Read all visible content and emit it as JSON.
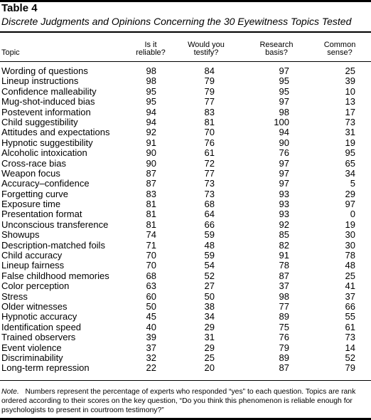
{
  "table": {
    "title": "Table 4",
    "subtitle": "Discrete Judgments and Opinions Concerning the 30 Eyewitness Topics Tested",
    "headers": {
      "topic": "Topic",
      "reliable_line1": "Is it",
      "reliable_line2": "reliable?",
      "testify_line1": "Would you",
      "testify_line2": "testify?",
      "research_line1": "Research",
      "research_line2": "basis?",
      "common_line1": "Common",
      "common_line2": "sense?"
    },
    "rows": [
      {
        "topic": "Wording of questions",
        "reliable": "98",
        "testify": "84",
        "research": "97",
        "common": "25"
      },
      {
        "topic": "Lineup instructions",
        "reliable": "98",
        "testify": "79",
        "research": "95",
        "common": "39"
      },
      {
        "topic": "Confidence malleability",
        "reliable": "95",
        "testify": "79",
        "research": "95",
        "common": "10"
      },
      {
        "topic": "Mug-shot-induced bias",
        "reliable": "95",
        "testify": "77",
        "research": "97",
        "common": "13"
      },
      {
        "topic": "Postevent information",
        "reliable": "94",
        "testify": "83",
        "research": "98",
        "common": "17"
      },
      {
        "topic": "Child suggestibility",
        "reliable": "94",
        "testify": "81",
        "research": "100",
        "common": "73"
      },
      {
        "topic": "Attitudes and expectations",
        "reliable": "92",
        "testify": "70",
        "research": "94",
        "common": "31"
      },
      {
        "topic": "Hypnotic suggestibility",
        "reliable": "91",
        "testify": "76",
        "research": "90",
        "common": "19"
      },
      {
        "topic": "Alcoholic intoxication",
        "reliable": "90",
        "testify": "61",
        "research": "76",
        "common": "95"
      },
      {
        "topic": "Cross-race bias",
        "reliable": "90",
        "testify": "72",
        "research": "97",
        "common": "65"
      },
      {
        "topic": "Weapon focus",
        "reliable": "87",
        "testify": "77",
        "research": "97",
        "common": "34"
      },
      {
        "topic": "Accuracy–confidence",
        "reliable": "87",
        "testify": "73",
        "research": "97",
        "common": "5"
      },
      {
        "topic": "Forgetting curve",
        "reliable": "83",
        "testify": "73",
        "research": "93",
        "common": "29"
      },
      {
        "topic": "Exposure time",
        "reliable": "81",
        "testify": "68",
        "research": "93",
        "common": "97"
      },
      {
        "topic": "Presentation format",
        "reliable": "81",
        "testify": "64",
        "research": "93",
        "common": "0"
      },
      {
        "topic": "Unconscious transference",
        "reliable": "81",
        "testify": "66",
        "research": "92",
        "common": "19"
      },
      {
        "topic": "Showups",
        "reliable": "74",
        "testify": "59",
        "research": "85",
        "common": "30"
      },
      {
        "topic": "Description-matched foils",
        "reliable": "71",
        "testify": "48",
        "research": "82",
        "common": "30"
      },
      {
        "topic": "Child accuracy",
        "reliable": "70",
        "testify": "59",
        "research": "91",
        "common": "78"
      },
      {
        "topic": "Lineup fairness",
        "reliable": "70",
        "testify": "54",
        "research": "78",
        "common": "48"
      },
      {
        "topic": "False childhood memories",
        "reliable": "68",
        "testify": "52",
        "research": "87",
        "common": "25"
      },
      {
        "topic": "Color perception",
        "reliable": "63",
        "testify": "27",
        "research": "37",
        "common": "41"
      },
      {
        "topic": "Stress",
        "reliable": "60",
        "testify": "50",
        "research": "98",
        "common": "37"
      },
      {
        "topic": "Older witnesses",
        "reliable": "50",
        "testify": "38",
        "research": "77",
        "common": "66"
      },
      {
        "topic": "Hypnotic accuracy",
        "reliable": "45",
        "testify": "34",
        "research": "89",
        "common": "55"
      },
      {
        "topic": "Identification speed",
        "reliable": "40",
        "testify": "29",
        "research": "75",
        "common": "61"
      },
      {
        "topic": "Trained observers",
        "reliable": "39",
        "testify": "31",
        "research": "76",
        "common": "73"
      },
      {
        "topic": "Event violence",
        "reliable": "37",
        "testify": "29",
        "research": "79",
        "common": "14"
      },
      {
        "topic": "Discriminability",
        "reliable": "32",
        "testify": "25",
        "research": "89",
        "common": "52"
      },
      {
        "topic": "Long-term repression",
        "reliable": "22",
        "testify": "20",
        "research": "87",
        "common": "79"
      }
    ],
    "note_label": "Note.",
    "note_text": "Numbers represent the percentage of experts who responded “yes” to each question. Topics are rank ordered according to their scores on the key question, “Do you think this phenomenon is reliable enough for psychologists to present in courtroom testimony?”"
  }
}
